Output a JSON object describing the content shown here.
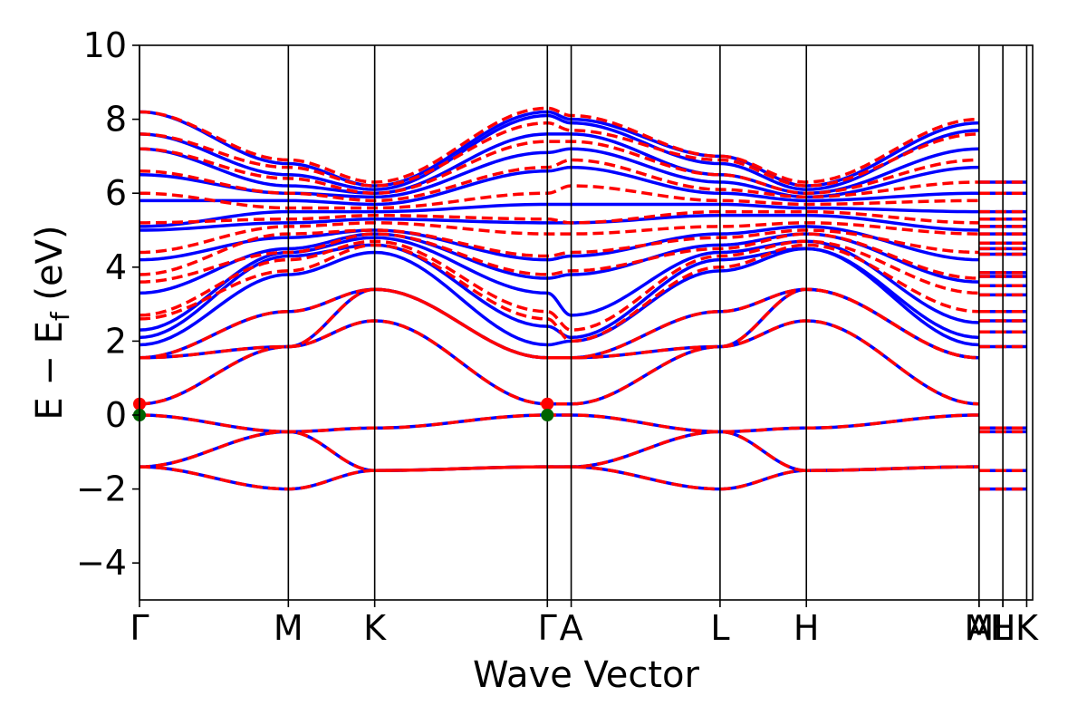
{
  "chart_data": {
    "type": "line",
    "title": "",
    "xlabel": "Wave Vector",
    "ylabel": "E − E",
    "ylabel_subscript": "f",
    "ylabel_unit": " (eV)",
    "ylim": [
      -5,
      10
    ],
    "xlim": [
      0,
      6.0
    ],
    "yticks": [
      -4,
      -2,
      0,
      2,
      4,
      6,
      8,
      10
    ],
    "ytick_labels": [
      "−4",
      "−2",
      "0",
      "2",
      "4",
      "6",
      "8",
      "10"
    ],
    "kpoints": [
      {
        "label": "Γ",
        "x": 0.0
      },
      {
        "label": "M",
        "x": 1.0
      },
      {
        "label": "K",
        "x": 1.58
      },
      {
        "label": "Γ",
        "x": 2.74
      },
      {
        "label": "A",
        "x": 2.9
      },
      {
        "label": "L",
        "x": 3.9
      },
      {
        "label": "H",
        "x": 4.48
      },
      {
        "label": "A",
        "x": 5.64
      },
      {
        "label": "M",
        "x": 5.64
      },
      {
        "label": "L",
        "x": 5.8
      },
      {
        "label": "H",
        "x": 5.8
      },
      {
        "label": "K",
        "x": 5.96
      }
    ],
    "kpath_vlines": [
      0.0,
      1.0,
      1.58,
      2.74,
      2.9,
      3.9,
      4.48,
      5.64,
      5.8,
      5.96
    ],
    "x": [
      0.0,
      1.0,
      1.58,
      2.74,
      2.9,
      3.9,
      4.48,
      5.64
    ],
    "series": [
      {
        "color": "#0000ff",
        "style": "solid",
        "bands": [
          [
            0.0,
            -0.45,
            -0.35,
            0.0,
            0.0,
            -0.45,
            -0.35,
            0.0
          ],
          [
            -1.4,
            -0.45,
            -1.5,
            -1.4,
            -1.4,
            -0.45,
            -1.5,
            -1.4
          ],
          [
            -1.4,
            -2.0,
            -1.5,
            -1.4,
            -1.4,
            -2.0,
            -1.5,
            -1.4
          ],
          [
            0.3,
            1.85,
            2.55,
            0.3,
            0.3,
            1.85,
            2.55,
            0.3
          ],
          [
            1.55,
            1.85,
            3.4,
            1.55,
            1.55,
            1.85,
            3.4,
            1.55
          ],
          [
            1.55,
            2.8,
            3.4,
            1.55,
            1.55,
            2.8,
            3.4,
            1.55
          ],
          [
            1.9,
            3.8,
            4.4,
            1.9,
            2.0,
            3.9,
            4.5,
            1.9
          ],
          [
            2.1,
            4.3,
            4.6,
            2.4,
            2.1,
            4.2,
            4.5,
            2.1
          ],
          [
            2.3,
            4.4,
            4.8,
            3.3,
            2.7,
            4.4,
            4.7,
            2.5
          ],
          [
            3.3,
            4.5,
            4.9,
            3.7,
            3.8,
            4.6,
            4.9,
            3.6
          ],
          [
            4.2,
            4.8,
            5.0,
            4.2,
            4.3,
            4.9,
            5.1,
            4.2
          ],
          [
            5.0,
            5.2,
            5.3,
            5.2,
            5.2,
            5.4,
            5.4,
            5.0
          ],
          [
            5.1,
            5.5,
            5.5,
            5.7,
            5.7,
            5.7,
            5.6,
            5.5
          ],
          [
            5.8,
            5.8,
            5.7,
            6.6,
            6.7,
            6.0,
            5.8,
            6.0
          ],
          [
            6.5,
            6.0,
            5.9,
            7.1,
            7.2,
            6.3,
            5.9,
            6.7
          ],
          [
            7.2,
            6.2,
            6.0,
            7.6,
            7.6,
            6.5,
            6.0,
            7.2
          ],
          [
            7.6,
            6.5,
            6.1,
            8.1,
            7.9,
            6.8,
            6.1,
            7.7
          ],
          [
            8.2,
            6.8,
            6.2,
            8.2,
            8.0,
            7.0,
            6.2,
            7.9
          ]
        ]
      },
      {
        "color": "#ff0000",
        "style": "dashed",
        "bands": [
          [
            0.0,
            -0.45,
            -0.35,
            0.0,
            0.0,
            -0.45,
            -0.35,
            0.0
          ],
          [
            -1.4,
            -0.45,
            -1.5,
            -1.4,
            -1.4,
            -0.45,
            -1.5,
            -1.4
          ],
          [
            -1.4,
            -2.0,
            -1.5,
            -1.4,
            -1.4,
            -2.0,
            -1.5,
            -1.4
          ],
          [
            0.3,
            1.85,
            2.55,
            0.3,
            0.3,
            1.85,
            2.55,
            0.3
          ],
          [
            1.55,
            1.85,
            3.4,
            1.55,
            1.55,
            1.85,
            3.4,
            1.55
          ],
          [
            1.55,
            2.8,
            3.4,
            1.55,
            1.55,
            2.8,
            3.4,
            1.55
          ],
          [
            2.6,
            3.9,
            4.6,
            2.6,
            2.0,
            4.0,
            4.6,
            2.8
          ],
          [
            2.7,
            4.2,
            4.7,
            2.8,
            2.3,
            4.3,
            4.7,
            3.3
          ],
          [
            3.6,
            4.4,
            4.9,
            3.8,
            3.9,
            4.5,
            4.9,
            3.7
          ],
          [
            3.8,
            4.9,
            5.0,
            4.3,
            4.4,
            4.8,
            5.0,
            4.4
          ],
          [
            4.4,
            5.1,
            5.2,
            4.9,
            4.9,
            5.1,
            5.2,
            4.9
          ],
          [
            5.2,
            5.3,
            5.4,
            5.3,
            5.2,
            5.5,
            5.5,
            5.2
          ],
          [
            6.0,
            5.6,
            5.6,
            6.0,
            6.2,
            5.8,
            5.7,
            5.8
          ],
          [
            6.6,
            6.0,
            5.8,
            6.7,
            6.9,
            6.1,
            5.9,
            6.3
          ],
          [
            7.2,
            6.4,
            6.0,
            7.4,
            7.4,
            6.5,
            6.0,
            6.9
          ],
          [
            7.6,
            6.7,
            6.2,
            7.9,
            7.7,
            6.9,
            6.2,
            7.6
          ],
          [
            8.2,
            6.9,
            6.3,
            8.3,
            8.1,
            7.0,
            6.3,
            8.0
          ]
        ]
      }
    ],
    "flat_segment": {
      "x0": 5.64,
      "x1": 5.96,
      "levels": [
        -2.0,
        -1.5,
        -0.45,
        -0.35,
        1.85,
        2.25,
        2.55,
        2.8,
        3.25,
        3.5,
        3.75,
        3.85,
        4.35,
        4.5,
        4.65,
        4.9,
        5.1,
        5.3,
        5.5,
        6.0,
        6.3
      ]
    },
    "markers": [
      {
        "x": 0.0,
        "y": 0.3,
        "color": "#ff0000"
      },
      {
        "x": 0.0,
        "y": 0.0,
        "color": "#006400"
      },
      {
        "x": 2.74,
        "y": 0.3,
        "color": "#ff0000"
      },
      {
        "x": 2.74,
        "y": 0.0,
        "color": "#006400"
      }
    ],
    "grid": false,
    "legend": "none"
  }
}
